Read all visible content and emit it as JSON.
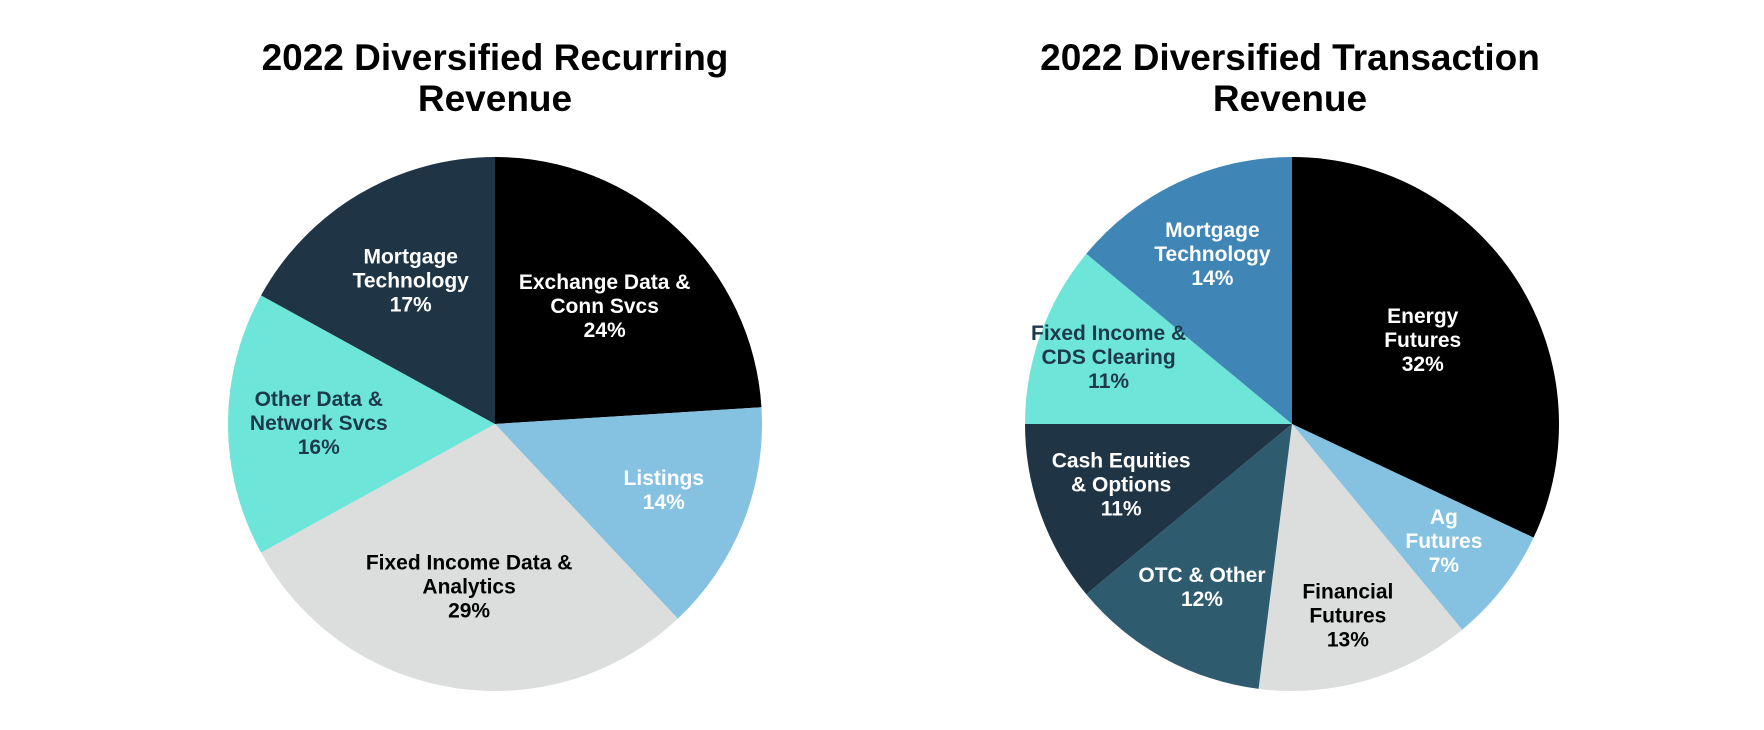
{
  "chart_data": [
    {
      "type": "pie",
      "title": "2022 Diversified Recurring Revenue",
      "slices": [
        {
          "label": "Exchange Data & Conn Svcs",
          "lines": [
            "Exchange Data &",
            "Conn Svcs"
          ],
          "value": 24,
          "pct_label": "24%",
          "color": "#000000",
          "text_color": "#ffffff"
        },
        {
          "label": "Listings",
          "lines": [
            "Listings"
          ],
          "value": 14,
          "pct_label": "14%",
          "color": "#85c2e2",
          "text_color": "#ffffff"
        },
        {
          "label": "Fixed Income Data & Analytics",
          "lines": [
            "Fixed Income Data &",
            "Analytics"
          ],
          "value": 29,
          "pct_label": "29%",
          "color": "#dcdddd",
          "text_color": "#000000"
        },
        {
          "label": "Other Data & Network Svcs",
          "lines": [
            "Other Data &",
            "Network Svcs"
          ],
          "value": 16,
          "pct_label": "16%",
          "color": "#6de6d9",
          "text_color": "#1e3a4a"
        },
        {
          "label": "Mortgage Technology",
          "lines": [
            "Mortgage",
            "Technology"
          ],
          "value": 17,
          "pct_label": "17%",
          "color": "#1f3444",
          "text_color": "#ffffff"
        }
      ]
    },
    {
      "type": "pie",
      "title": "2022 Diversified Transaction Revenue",
      "slices": [
        {
          "label": "Energy Futures",
          "lines": [
            "Energy",
            "Futures"
          ],
          "value": 32,
          "pct_label": "32%",
          "color": "#000000",
          "text_color": "#ffffff"
        },
        {
          "label": "Ag Futures",
          "lines": [
            "Ag",
            "Futures"
          ],
          "value": 7,
          "pct_label": "7%",
          "color": "#85c2e2",
          "text_color": "#ffffff"
        },
        {
          "label": "Financial Futures",
          "lines": [
            "Financial",
            "Futures"
          ],
          "value": 13,
          "pct_label": "13%",
          "color": "#dcdddd",
          "text_color": "#000000"
        },
        {
          "label": "OTC & Other",
          "lines": [
            "OTC & Other"
          ],
          "value": 12,
          "pct_label": "12%",
          "color": "#2f5b6e",
          "text_color": "#ffffff"
        },
        {
          "label": "Cash Equities & Options",
          "lines": [
            "Cash Equities",
            "& Options"
          ],
          "value": 11,
          "pct_label": "11%",
          "color": "#1f3444",
          "text_color": "#ffffff"
        },
        {
          "label": "Fixed Income & CDS Clearing",
          "lines": [
            "Fixed Income &",
            "CDS Clearing"
          ],
          "value": 11,
          "pct_label": "11%",
          "color": "#6de6d9",
          "text_color": "#1e3a4a"
        },
        {
          "label": "Mortgage Technology",
          "lines": [
            "Mortgage",
            "Technology"
          ],
          "value": 14,
          "pct_label": "14%",
          "color": "#3f86b6",
          "text_color": "#ffffff"
        }
      ]
    }
  ]
}
